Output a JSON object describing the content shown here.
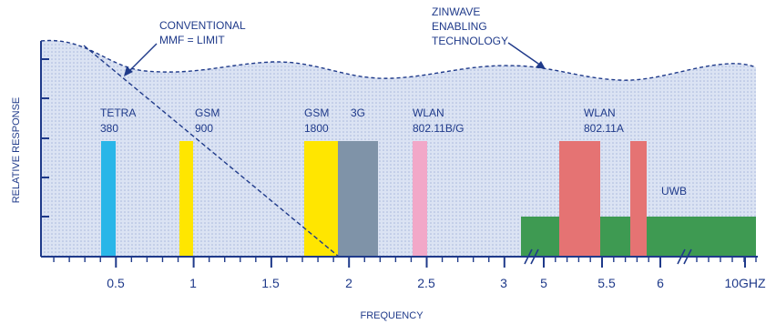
{
  "chart_data": {
    "type": "bar",
    "xlabel": "FREQUENCY",
    "ylabel": "RELATIVE RESPONSE",
    "x_tick_labels": [
      "0.5",
      "1",
      "1.5",
      "2",
      "2.5",
      "3",
      "5",
      "5.5",
      "6",
      "10GHZ"
    ],
    "annotations": {
      "conventional": [
        "CONVENTIONAL",
        "MMF = LIMIT"
      ],
      "zinwave": [
        "ZINWAVE",
        "ENABLING",
        "TECHNOLOGY"
      ]
    },
    "bands": [
      {
        "name": "TETRA",
        "sub": "380",
        "color": "#29b6e8"
      },
      {
        "name": "GSM",
        "sub": "900",
        "color": "#ffe600"
      },
      {
        "name": "GSM",
        "sub": "1800",
        "color": "#ffe600"
      },
      {
        "name": "3G",
        "sub": "",
        "color": "#7f93a8"
      },
      {
        "name": "WLAN",
        "sub": "802.11B/G",
        "color": "#f2a8c8"
      },
      {
        "name": "WLAN",
        "sub": "802.11A",
        "color": "#e57373"
      },
      {
        "name": "UWB",
        "sub": "",
        "color": "#3e9a52"
      }
    ],
    "colors": {
      "axis": "#1f3a8a",
      "label": "#1f3a8a",
      "fill": "#cfdaf0",
      "dot": "#9fb0d8"
    }
  }
}
